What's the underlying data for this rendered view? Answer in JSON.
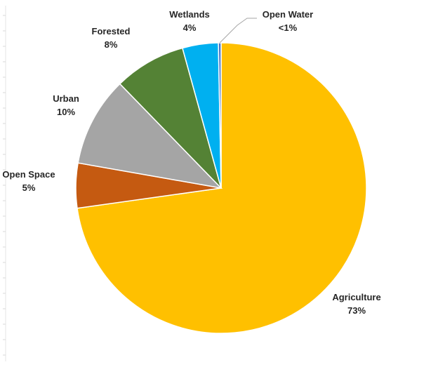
{
  "chart_data": {
    "type": "pie",
    "title": "",
    "slices": [
      {
        "label": "Agriculture",
        "value_label": "73%",
        "value": 73,
        "color": "#FFC000"
      },
      {
        "label": "Open Space",
        "value_label": "5%",
        "value": 5,
        "color": "#C55A11"
      },
      {
        "label": "Urban",
        "value_label": "10%",
        "value": 10,
        "color": "#A5A5A5"
      },
      {
        "label": "Forested",
        "value_label": "8%",
        "value": 8,
        "color": "#548235"
      },
      {
        "label": "Wetlands",
        "value_label": "4%",
        "value": 4,
        "color": "#00B0F0"
      },
      {
        "label": "Open Water",
        "value_label": "<1%",
        "value": 0.3,
        "color": "#4472C4"
      }
    ],
    "start_angle_deg": 0,
    "direction": "clockwise",
    "legend": "none"
  }
}
